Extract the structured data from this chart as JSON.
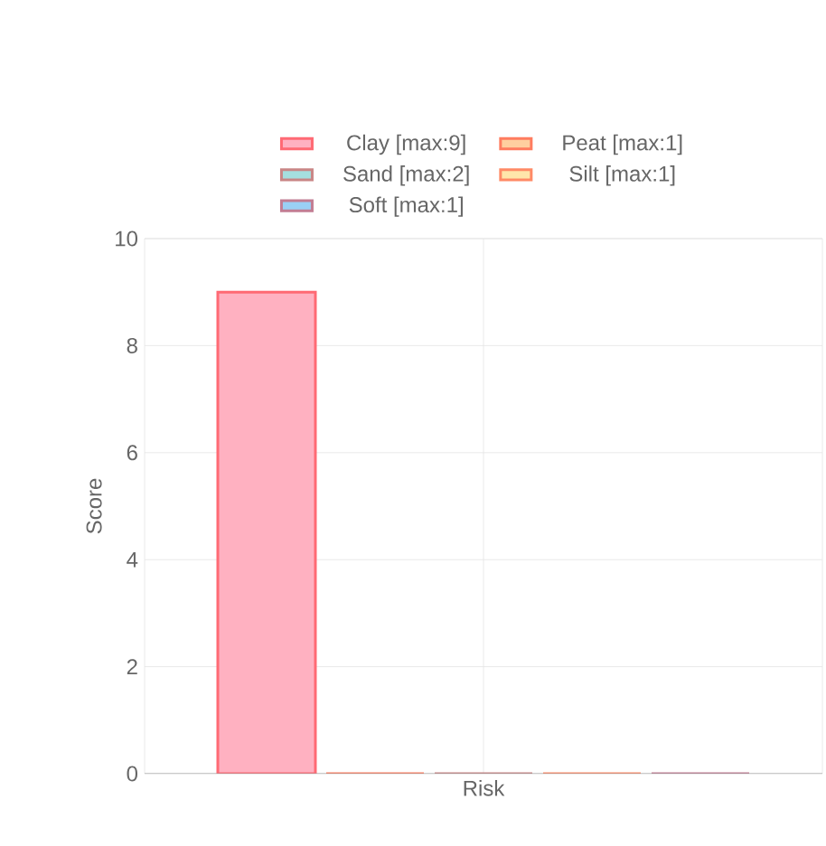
{
  "chart_data": {
    "type": "bar",
    "categories": [
      "Risk"
    ],
    "ylabel": "Score",
    "ylim": [
      0,
      10
    ],
    "yticks": [
      0,
      2,
      4,
      6,
      8,
      10
    ],
    "grid": true,
    "legend": "top",
    "series": [
      {
        "name": "Clay [max:9]",
        "color": "#ffb1c1",
        "values": [
          9
        ]
      },
      {
        "name": "Peat [max:1]",
        "color": "#ffcf9f",
        "values": [
          0
        ]
      },
      {
        "name": "Sand [max:2]",
        "color": "#a5dfdf",
        "values": [
          0
        ]
      },
      {
        "name": "Silt [max:1]",
        "color": "#ffe6aa",
        "values": [
          0
        ]
      },
      {
        "name": "Soft [max:1]",
        "color": "#9ad0f5",
        "values": [
          0
        ]
      }
    ]
  }
}
